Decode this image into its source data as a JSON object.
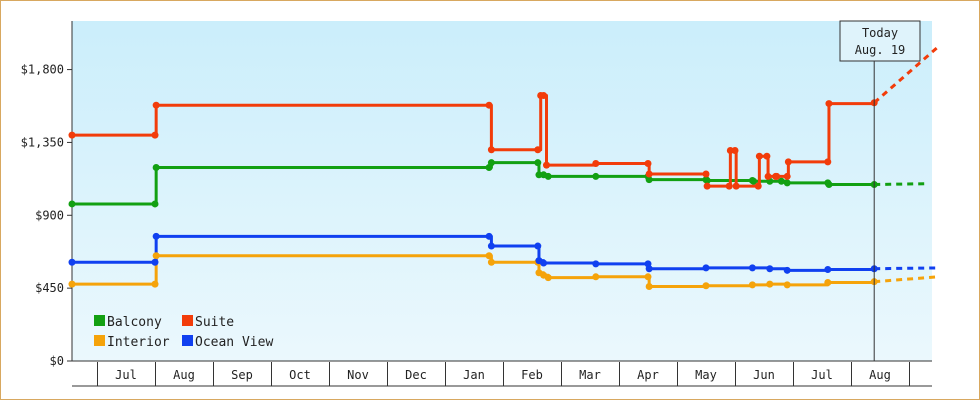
{
  "chart_data": {
    "type": "line",
    "title": "",
    "xlabel": "",
    "ylabel": "",
    "y_ticks": [
      "$0",
      "$450",
      "$900",
      "$1,350",
      "$1,800"
    ],
    "ylim": [
      0,
      2100
    ],
    "x_months": [
      "Jul",
      "Aug",
      "Sep",
      "Oct",
      "Nov",
      "Dec",
      "Jan",
      "Feb",
      "Mar",
      "Apr",
      "May",
      "Jun",
      "Jul",
      "Aug"
    ],
    "x_month_index_range": [
      0,
      14.5
    ],
    "step_lines": true,
    "grid": false,
    "legend_placement": "bottom-left",
    "today_marker": {
      "line1": "Today",
      "line2": "Aug. 19",
      "x": 13.4
    },
    "series": [
      {
        "name": "Balcony",
        "color": "#12a012",
        "points": [
          [
            -0.45,
            970
          ],
          [
            1.0,
            970
          ],
          [
            1.02,
            1195
          ],
          [
            6.76,
            1195
          ],
          [
            6.8,
            1225
          ],
          [
            7.6,
            1225
          ],
          [
            7.62,
            1150
          ],
          [
            7.7,
            1150
          ],
          [
            7.78,
            1140
          ],
          [
            8.6,
            1140
          ],
          [
            9.5,
            1140
          ],
          [
            9.52,
            1120
          ],
          [
            10.5,
            1120
          ],
          [
            10.52,
            1115
          ],
          [
            11.3,
            1115
          ],
          [
            11.32,
            1110
          ],
          [
            11.6,
            1110
          ],
          [
            11.8,
            1110
          ],
          [
            11.9,
            1100
          ],
          [
            12.6,
            1100
          ],
          [
            12.62,
            1090
          ],
          [
            13.4,
            1090
          ]
        ],
        "forecast": [
          [
            13.4,
            1090
          ],
          [
            14.3,
            1095
          ]
        ]
      },
      {
        "name": "Suite",
        "color": "#f23c0a",
        "points": [
          [
            -0.45,
            1395
          ],
          [
            1.0,
            1395
          ],
          [
            1.02,
            1580
          ],
          [
            6.76,
            1580
          ],
          [
            6.8,
            1305
          ],
          [
            7.6,
            1305
          ],
          [
            7.65,
            1640
          ],
          [
            7.7,
            1640
          ],
          [
            7.75,
            1210
          ],
          [
            8.6,
            1220
          ],
          [
            9.5,
            1220
          ],
          [
            9.52,
            1155
          ],
          [
            10.5,
            1155
          ],
          [
            10.52,
            1080
          ],
          [
            10.9,
            1080
          ],
          [
            10.92,
            1300
          ],
          [
            11.0,
            1300
          ],
          [
            11.02,
            1080
          ],
          [
            11.4,
            1080
          ],
          [
            11.42,
            1265
          ],
          [
            11.55,
            1265
          ],
          [
            11.57,
            1140
          ],
          [
            11.7,
            1140
          ],
          [
            11.72,
            1140
          ],
          [
            11.9,
            1140
          ],
          [
            11.92,
            1230
          ],
          [
            12.6,
            1230
          ],
          [
            12.62,
            1590
          ],
          [
            13.4,
            1595
          ]
        ],
        "forecast": [
          [
            13.4,
            1595
          ],
          [
            14.5,
            1940
          ]
        ]
      },
      {
        "name": "Interior",
        "color": "#f5a30a",
        "points": [
          [
            -0.45,
            475
          ],
          [
            1.0,
            475
          ],
          [
            1.02,
            650
          ],
          [
            6.76,
            650
          ],
          [
            6.8,
            610
          ],
          [
            7.6,
            610
          ],
          [
            7.62,
            545
          ],
          [
            7.7,
            530
          ],
          [
            7.78,
            515
          ],
          [
            8.6,
            520
          ],
          [
            9.5,
            520
          ],
          [
            9.52,
            460
          ],
          [
            10.5,
            465
          ],
          [
            11.3,
            470
          ],
          [
            11.6,
            475
          ],
          [
            11.9,
            470
          ],
          [
            12.6,
            485
          ],
          [
            13.4,
            490
          ]
        ],
        "forecast": [
          [
            13.4,
            490
          ],
          [
            14.5,
            520
          ]
        ]
      },
      {
        "name": "Ocean View",
        "color": "#1040f0",
        "points": [
          [
            -0.45,
            610
          ],
          [
            1.0,
            610
          ],
          [
            1.02,
            770
          ],
          [
            6.76,
            770
          ],
          [
            6.8,
            710
          ],
          [
            7.6,
            710
          ],
          [
            7.62,
            620
          ],
          [
            7.7,
            605
          ],
          [
            8.6,
            600
          ],
          [
            9.5,
            600
          ],
          [
            9.52,
            570
          ],
          [
            10.5,
            575
          ],
          [
            11.3,
            575
          ],
          [
            11.6,
            570
          ],
          [
            11.9,
            560
          ],
          [
            12.6,
            565
          ],
          [
            13.4,
            570
          ]
        ],
        "forecast": [
          [
            13.4,
            570
          ],
          [
            14.5,
            575
          ]
        ]
      }
    ]
  }
}
